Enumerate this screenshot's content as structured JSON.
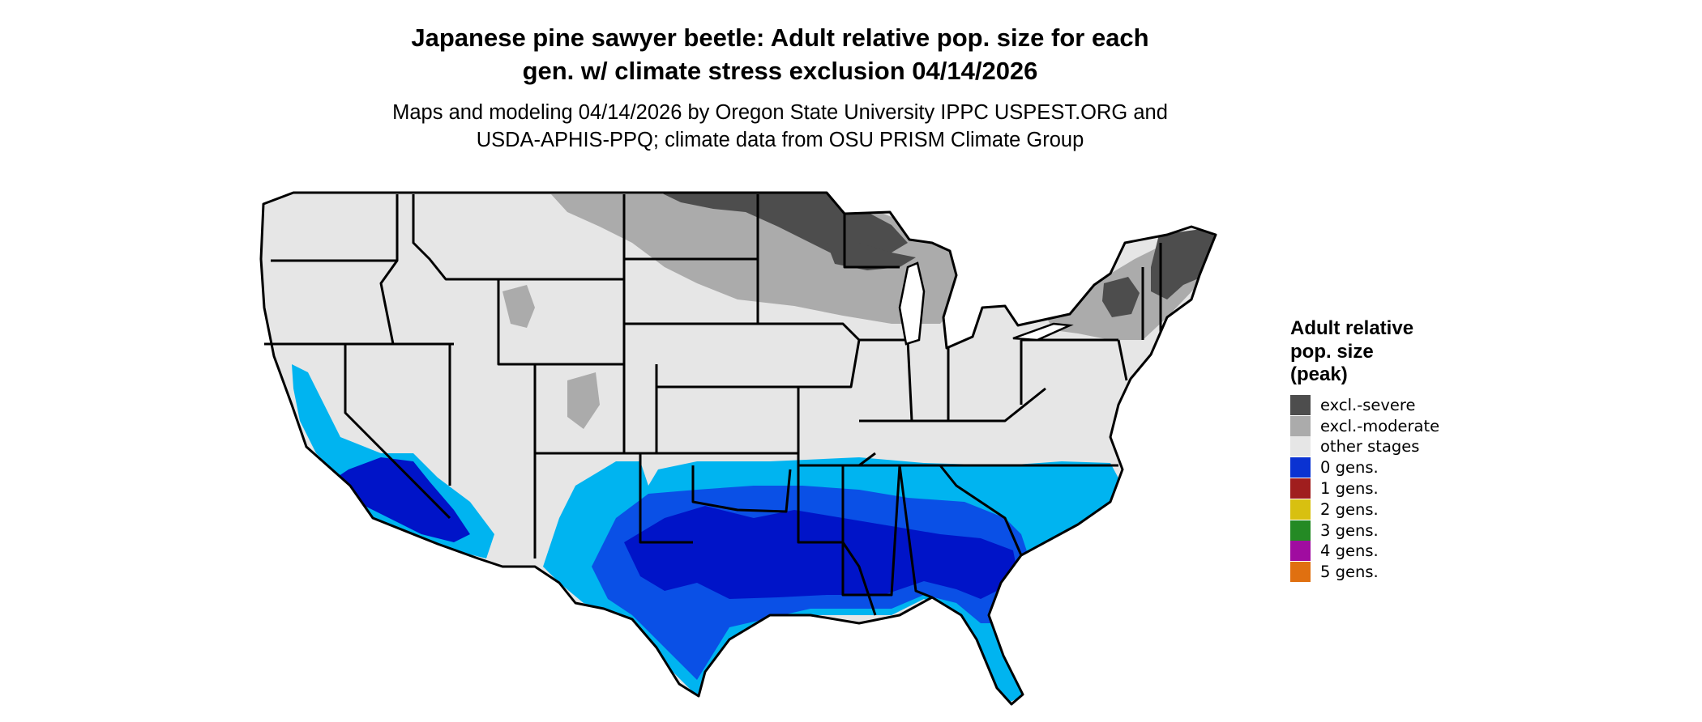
{
  "title": {
    "line1": "Japanese pine sawyer beetle: Adult relative pop. size for each",
    "line2": "gen. w/ climate stress exclusion 04/14/2026"
  },
  "subtitle": {
    "line1": "Maps and modeling 04/14/2026 by Oregon State University IPPC USPEST.ORG and",
    "line2": "USDA-APHIS-PPQ; climate data from OSU PRISM Climate Group"
  },
  "legend": {
    "title_line1": "Adult relative",
    "title_line2": "pop. size",
    "title_line3": "(peak)",
    "items": [
      {
        "label": "excl.-severe",
        "color": "#4d4d4d"
      },
      {
        "label": "excl.-moderate",
        "color": "#ababab"
      },
      {
        "label": "other stages",
        "color": "#e6e6e6"
      },
      {
        "label": "0 gens.",
        "color": "#0a32d2"
      },
      {
        "label": "1 gens.",
        "color": "#a01e1e"
      },
      {
        "label": "2 gens.",
        "color": "#d8c010"
      },
      {
        "label": "3 gens.",
        "color": "#248a24"
      },
      {
        "label": "4 gens.",
        "color": "#a00ca0"
      },
      {
        "label": "5 gens.",
        "color": "#e07010"
      }
    ]
  },
  "map": {
    "colors": {
      "base": "#e6e6e6",
      "excl_severe": "#4d4d4d",
      "excl_moderate": "#ababab",
      "light_blue": "#00b4f0",
      "mid_blue": "#0a50e6",
      "dark_blue": "#0014c8",
      "border": "#000000"
    }
  }
}
